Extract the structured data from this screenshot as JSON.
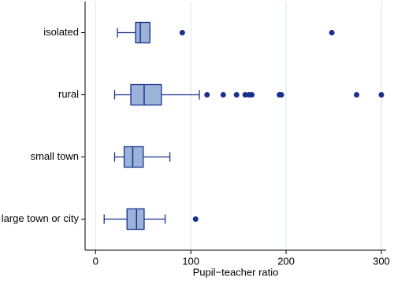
{
  "chart_data": {
    "type": "box",
    "x_label": "Pupil−teacher ratio",
    "categories": [
      "isolated",
      "rural",
      "small town",
      "large town or city"
    ],
    "boxes": [
      {
        "min": 23,
        "q1": 42,
        "median": 47,
        "q3": 57,
        "max": 57,
        "outliers": [
          91,
          248
        ]
      },
      {
        "min": 20,
        "q1": 37,
        "median": 51,
        "q3": 69,
        "max": 109,
        "outliers": [
          117,
          134,
          148,
          157,
          161,
          164,
          193,
          195,
          274,
          300
        ]
      },
      {
        "min": 20,
        "q1": 30,
        "median": 39,
        "q3": 50,
        "max": 78,
        "outliers": []
      },
      {
        "min": 9,
        "q1": 33,
        "median": 43,
        "q3": 51,
        "max": 73,
        "outliers": [
          105
        ]
      }
    ],
    "box_color": "#9bb3d9",
    "line_color": "#1a2f8c",
    "xlim": [
      -11,
      305
    ],
    "xticks": [
      0,
      100,
      200,
      300
    ],
    "grid": true
  }
}
